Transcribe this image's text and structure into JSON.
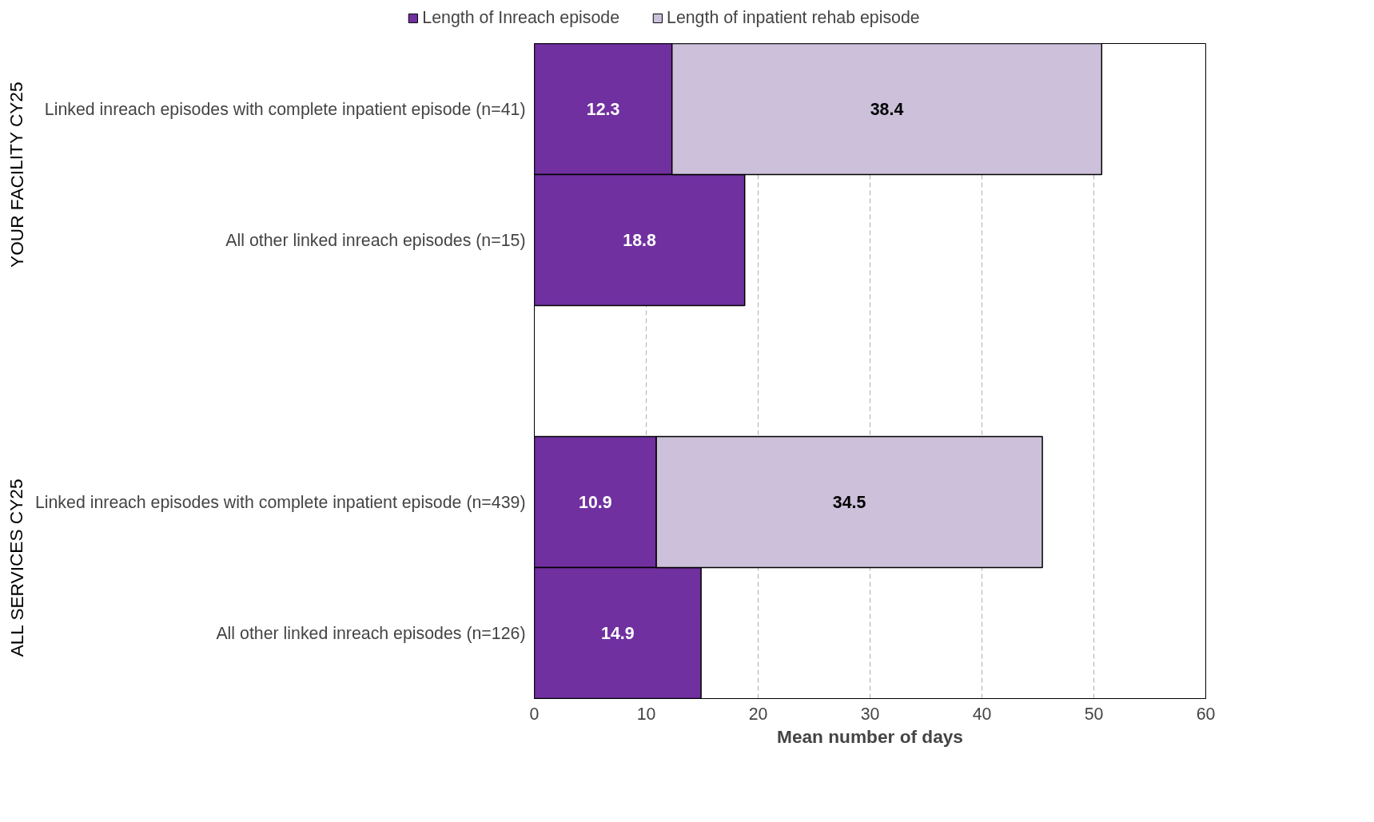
{
  "chart_data": {
    "type": "bar",
    "orientation": "horizontal",
    "stacked": true,
    "categories": [
      "Linked inreach episodes with complete inpatient episode (n=41)",
      "All other linked inreach episodes (n=15)",
      null,
      "Linked inreach episodes with complete inpatient episode (n=439)",
      "All other linked inreach episodes (n=126)"
    ],
    "series": [
      {
        "name": "Length of Inreach episode",
        "color": "#7030a0",
        "values": [
          12.3,
          18.8,
          null,
          10.9,
          14.9
        ]
      },
      {
        "name": "Length of inpatient rehab episode",
        "color": "#ccc0da",
        "values": [
          38.4,
          null,
          null,
          34.5,
          null
        ]
      }
    ],
    "xlabel": "Mean number of days",
    "xlim": [
      0,
      60
    ],
    "xticks": [
      0,
      10,
      20,
      30,
      40,
      50,
      60
    ],
    "annotations": [
      "YOUR FACILITY CY25",
      "ALL SERVICES CY25"
    ],
    "data_labels": true,
    "grid": "x",
    "legend": "top"
  }
}
